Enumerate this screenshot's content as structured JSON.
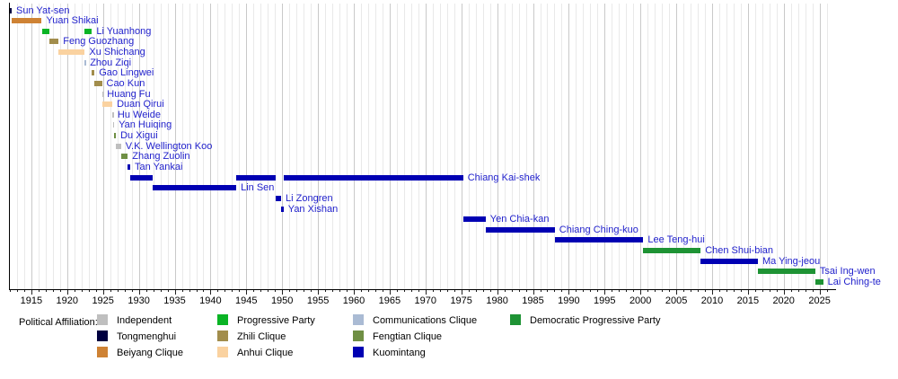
{
  "chart_data": {
    "type": "timeline",
    "title": "",
    "xlabel": "",
    "ylabel": "",
    "grid": "vertical-yearly",
    "legend_position": "bottom",
    "x_axis": {
      "range": [
        1912,
        2027
      ],
      "major_ticks": [
        1915,
        1920,
        1925,
        1930,
        1935,
        1940,
        1945,
        1950,
        1955,
        1960,
        1965,
        1970,
        1975,
        1980,
        1985,
        1990,
        1995,
        2000,
        2005,
        2010,
        2015,
        2020,
        2025
      ],
      "minor_step": 1
    },
    "rows": [
      {
        "name": "Sun Yat-sen",
        "affiliation": "Tongmenghui",
        "segments": [
          [
            1912.0,
            1912.25
          ]
        ]
      },
      {
        "name": "Yuan Shikai",
        "affiliation": "Beiyang Clique",
        "segments": [
          [
            1912.2,
            1916.45
          ]
        ]
      },
      {
        "name": "Li Yuanhong",
        "affiliation": "Progressive Party",
        "segments": [
          [
            1916.45,
            1917.55
          ],
          [
            1922.45,
            1923.45
          ]
        ]
      },
      {
        "name": "Feng Guozhang",
        "affiliation": "Zhili Clique",
        "segments": [
          [
            1917.55,
            1918.8
          ]
        ]
      },
      {
        "name": "Xu Shichang",
        "affiliation": "Anhui Clique",
        "segments": [
          [
            1918.8,
            1922.45
          ]
        ]
      },
      {
        "name": "Zhou Ziqi",
        "affiliation": "Communications Clique",
        "segments": [
          [
            1922.42,
            1922.55
          ]
        ]
      },
      {
        "name": "Gao Lingwei",
        "affiliation": "Zhili Clique",
        "segments": [
          [
            1923.45,
            1923.8
          ]
        ]
      },
      {
        "name": "Cao Kun",
        "affiliation": "Zhili Clique",
        "segments": [
          [
            1923.8,
            1924.85
          ]
        ]
      },
      {
        "name": "Huang Fu",
        "affiliation": "Independent",
        "segments": [
          [
            1924.85,
            1924.95
          ]
        ]
      },
      {
        "name": "Duan Qirui",
        "affiliation": "Anhui Clique",
        "segments": [
          [
            1924.95,
            1926.3
          ]
        ]
      },
      {
        "name": "Hu Weide",
        "affiliation": "Independent",
        "segments": [
          [
            1926.3,
            1926.4
          ]
        ]
      },
      {
        "name": "Yan Huiqing",
        "affiliation": "Independent",
        "segments": [
          [
            1926.4,
            1926.55
          ]
        ]
      },
      {
        "name": "Du Xigui",
        "affiliation": "Fengtian Clique",
        "segments": [
          [
            1926.55,
            1926.8
          ]
        ]
      },
      {
        "name": "V.K. Wellington Koo",
        "affiliation": "Independent",
        "segments": [
          [
            1926.8,
            1927.5
          ]
        ]
      },
      {
        "name": "Zhang Zuolin",
        "affiliation": "Fengtian Clique",
        "segments": [
          [
            1927.5,
            1928.45
          ]
        ]
      },
      {
        "name": "Tan Yankai",
        "affiliation": "Kuomintang",
        "segments": [
          [
            1928.45,
            1928.8
          ]
        ]
      },
      {
        "name": "Chiang Kai-shek",
        "affiliation": "Kuomintang",
        "segments": [
          [
            1928.8,
            1931.95
          ],
          [
            1943.6,
            1949.05
          ],
          [
            1950.2,
            1975.25
          ]
        ]
      },
      {
        "name": "Lin Sen",
        "affiliation": "Kuomintang",
        "segments": [
          [
            1931.95,
            1943.6
          ]
        ]
      },
      {
        "name": "Li Zongren",
        "affiliation": "Kuomintang",
        "segments": [
          [
            1949.05,
            1949.85
          ]
        ]
      },
      {
        "name": "Yan Xishan",
        "affiliation": "Kuomintang",
        "segments": [
          [
            1949.85,
            1950.2
          ]
        ]
      },
      {
        "name": "Yen Chia-kan",
        "affiliation": "Kuomintang",
        "segments": [
          [
            1975.25,
            1978.4
          ]
        ]
      },
      {
        "name": "Chiang Ching-kuo",
        "affiliation": "Kuomintang",
        "segments": [
          [
            1978.4,
            1988.05
          ]
        ]
      },
      {
        "name": "Lee Teng-hui",
        "affiliation": "Kuomintang",
        "segments": [
          [
            1988.05,
            2000.4
          ]
        ]
      },
      {
        "name": "Chen Shui-bian",
        "affiliation": "Democratic Progressive Party",
        "segments": [
          [
            2000.4,
            2008.4
          ]
        ]
      },
      {
        "name": "Ma Ying-jeou",
        "affiliation": "Kuomintang",
        "segments": [
          [
            2008.4,
            2016.4
          ]
        ]
      },
      {
        "name": "Tsai Ing-wen",
        "affiliation": "Democratic Progressive Party",
        "segments": [
          [
            2016.4,
            2024.4
          ]
        ]
      },
      {
        "name": "Lai Ching-te",
        "affiliation": "Democratic Progressive Party",
        "segments": [
          [
            2024.4,
            2025.5
          ]
        ]
      }
    ]
  },
  "legend": {
    "title": "Political Affiliation:",
    "columns": [
      [
        {
          "label": "Independent",
          "color": "#BFBFBF"
        },
        {
          "label": "Tongmenghui",
          "color": "#000040"
        },
        {
          "label": "Beiyang Clique",
          "color": "#CE8234"
        }
      ],
      [
        {
          "label": "Progressive Party",
          "color": "#0AB425"
        },
        {
          "label": "Zhili Clique",
          "color": "#A28D4C"
        },
        {
          "label": "Anhui Clique",
          "color": "#FAD2A0"
        }
      ],
      [
        {
          "label": "Communications Clique",
          "color": "#AABBD4"
        },
        {
          "label": "Fengtian Clique",
          "color": "#6F8F44"
        },
        {
          "label": "Kuomintang",
          "color": "#0000B3"
        }
      ],
      [
        {
          "label": "Democratic Progressive Party",
          "color": "#1E9334"
        }
      ]
    ]
  },
  "styles": {
    "row_label_color": "#2222CC",
    "grid_minor_color": "#E9E9E9",
    "grid_major_color": "#C9C9C9",
    "axis_color": "#000000"
  }
}
